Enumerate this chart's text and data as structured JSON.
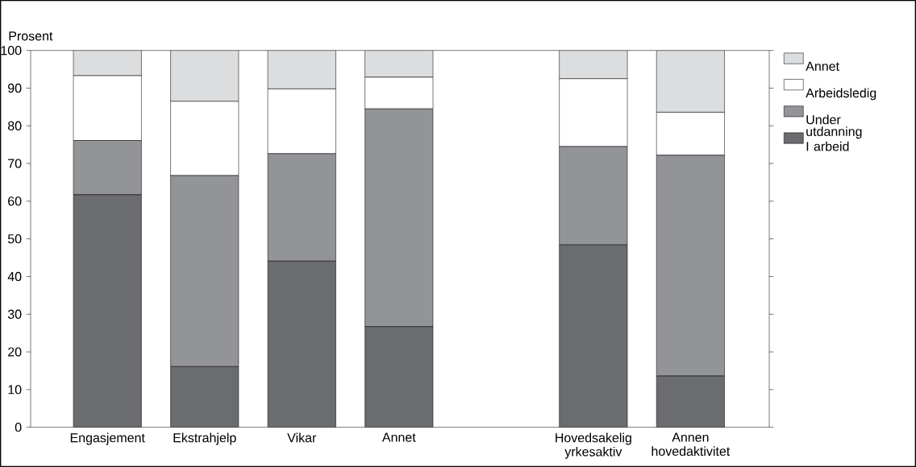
{
  "chart_data": {
    "type": "bar",
    "stacked": true,
    "ylabel": "Prosent",
    "categories": [
      "Engasjement",
      "Ekstrahjelp",
      "Vikar",
      "Annet",
      null,
      "Hovedsakelig yrkesaktiv",
      "Annen hovedaktivitet"
    ],
    "series": [
      {
        "name": "I arbeid",
        "color": "#6b6c70",
        "values": [
          61.7,
          16.1,
          44.1,
          26.7,
          null,
          48.4,
          13.6
        ]
      },
      {
        "name": "Under utdanning",
        "color": "#939497",
        "values": [
          14.4,
          50.7,
          28.5,
          57.8,
          null,
          26.1,
          58.6
        ]
      },
      {
        "name": "Arbeidsledig",
        "color": "#ffffff",
        "values": [
          17.2,
          19.7,
          17.2,
          8.4,
          null,
          18.0,
          11.4
        ]
      },
      {
        "name": "Annet",
        "color": "#dcdddf",
        "values": [
          6.7,
          13.5,
          10.2,
          7.1,
          null,
          7.5,
          16.4
        ]
      }
    ],
    "ylim": [
      0,
      100
    ],
    "yticks": [
      0,
      10,
      20,
      30,
      40,
      50,
      60,
      70,
      80,
      90,
      100
    ],
    "legend": "right"
  }
}
